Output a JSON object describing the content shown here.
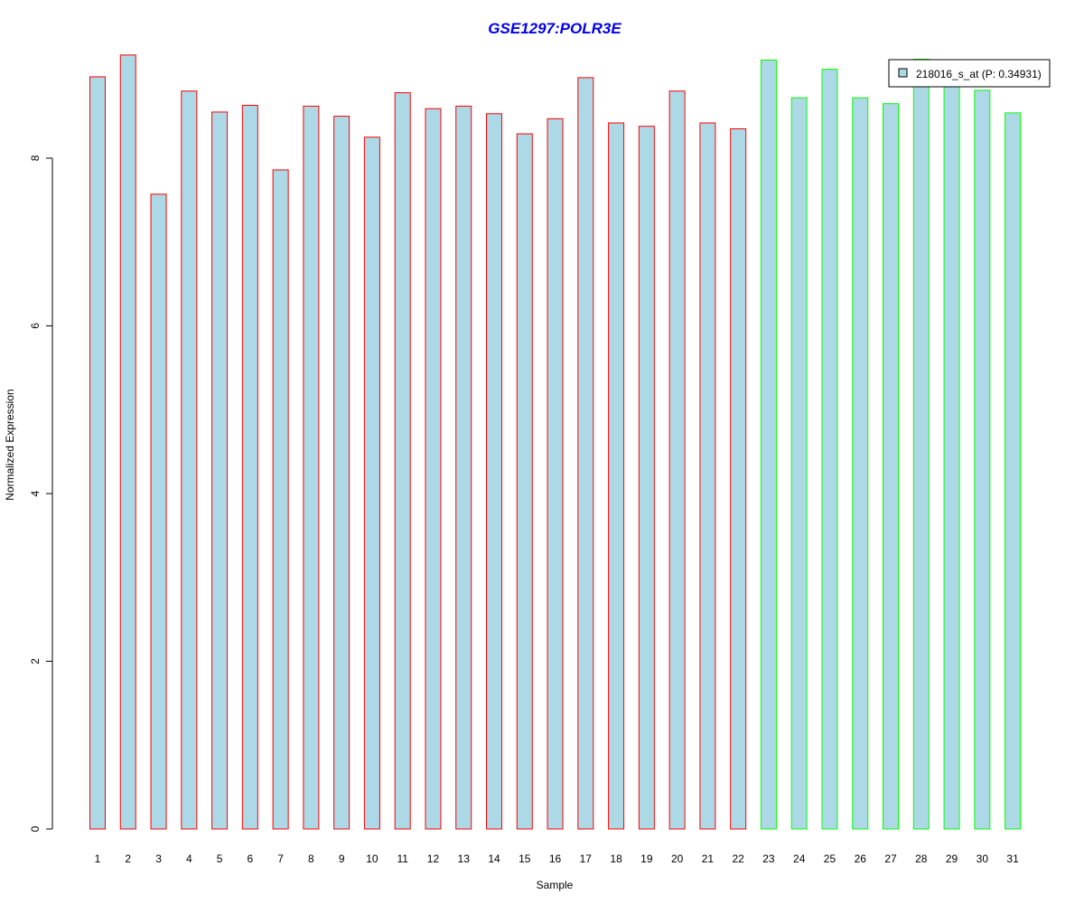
{
  "chart_data": {
    "type": "bar",
    "title": "GSE1297:POLR3E",
    "xlabel": "Sample",
    "ylabel": "Normalized Expression",
    "categories": [
      "1",
      "2",
      "3",
      "4",
      "5",
      "6",
      "7",
      "8",
      "9",
      "10",
      "11",
      "12",
      "13",
      "14",
      "15",
      "16",
      "17",
      "18",
      "19",
      "20",
      "21",
      "22",
      "23",
      "24",
      "25",
      "26",
      "27",
      "28",
      "29",
      "30",
      "31"
    ],
    "values": [
      8.97,
      9.23,
      7.57,
      8.8,
      8.55,
      8.63,
      7.86,
      8.62,
      8.5,
      8.25,
      8.78,
      8.59,
      8.62,
      8.53,
      8.29,
      8.47,
      8.96,
      8.42,
      8.38,
      8.8,
      8.42,
      8.35,
      9.17,
      8.72,
      9.06,
      8.72,
      8.65,
      9.18,
      8.91,
      8.81,
      8.54
    ],
    "groups": [
      "red",
      "red",
      "red",
      "red",
      "red",
      "red",
      "red",
      "red",
      "red",
      "red",
      "red",
      "red",
      "red",
      "red",
      "red",
      "red",
      "red",
      "red",
      "red",
      "red",
      "red",
      "red",
      "green",
      "green",
      "green",
      "green",
      "green",
      "green",
      "green",
      "green",
      "green"
    ],
    "yticks": [
      0,
      2,
      4,
      6,
      8
    ],
    "ylim": [
      0,
      9.25
    ],
    "legend": {
      "label": "218016_s_at (P: 0.34931)",
      "position": "top-right"
    },
    "grid": false,
    "colors": {
      "bar_fill": "#add8e6",
      "group1_border": "#ff0000",
      "group2_border": "#00ff00",
      "title": "#0000ee"
    }
  }
}
